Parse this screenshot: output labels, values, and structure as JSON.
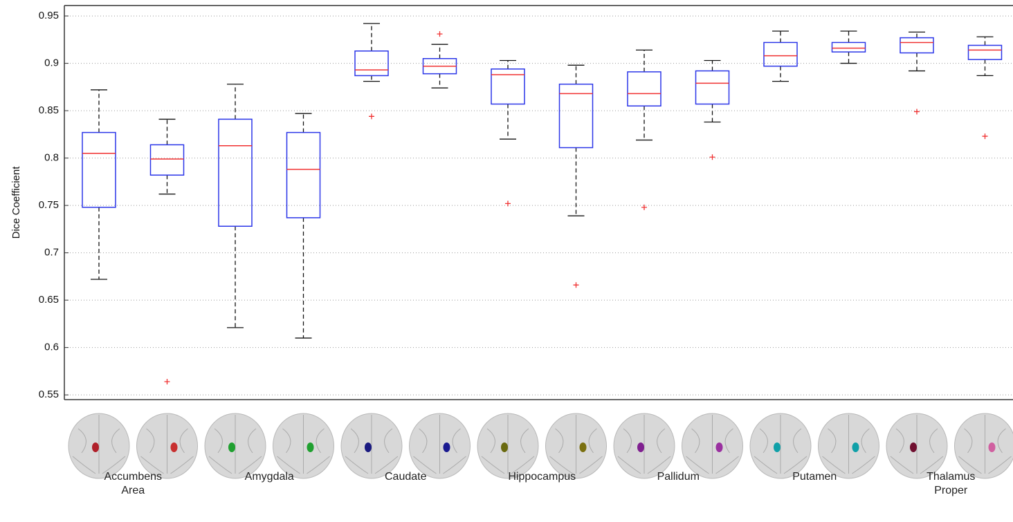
{
  "chart_data": {
    "type": "box",
    "y_label": "Dice Coefficient",
    "ylim": [
      0.545,
      0.961
    ],
    "yticks": [
      0.55,
      0.6,
      0.65,
      0.7,
      0.75,
      0.8,
      0.85,
      0.9,
      0.95
    ],
    "grid": true,
    "box_color": "#2a35e8",
    "median_color": "#f03030",
    "whisker_color": "#111111",
    "outlier_color": "#f03030",
    "groups": [
      {
        "label": "Accumbens Area",
        "boxes": [
          {
            "low": 0.672,
            "q1": 0.748,
            "median": 0.805,
            "q3": 0.827,
            "high": 0.872,
            "outliers": []
          },
          {
            "low": 0.762,
            "q1": 0.782,
            "median": 0.799,
            "q3": 0.814,
            "high": 0.841,
            "outliers": [
              0.564
            ]
          }
        ]
      },
      {
        "label": "Amygdala",
        "boxes": [
          {
            "low": 0.621,
            "q1": 0.728,
            "median": 0.813,
            "q3": 0.841,
            "high": 0.878,
            "outliers": []
          },
          {
            "low": 0.61,
            "q1": 0.737,
            "median": 0.788,
            "q3": 0.827,
            "high": 0.847,
            "outliers": []
          }
        ]
      },
      {
        "label": "Caudate",
        "boxes": [
          {
            "low": 0.881,
            "q1": 0.887,
            "median": 0.893,
            "q3": 0.913,
            "high": 0.942,
            "outliers": [
              0.844
            ]
          },
          {
            "low": 0.874,
            "q1": 0.889,
            "median": 0.897,
            "q3": 0.905,
            "high": 0.92,
            "outliers": [
              0.931
            ]
          }
        ]
      },
      {
        "label": "Hippocampus",
        "boxes": [
          {
            "low": 0.82,
            "q1": 0.857,
            "median": 0.888,
            "q3": 0.894,
            "high": 0.903,
            "outliers": [
              0.752
            ]
          },
          {
            "low": 0.739,
            "q1": 0.811,
            "median": 0.868,
            "q3": 0.878,
            "high": 0.898,
            "outliers": [
              0.666
            ]
          }
        ]
      },
      {
        "label": "Pallidum",
        "boxes": [
          {
            "low": 0.819,
            "q1": 0.855,
            "median": 0.868,
            "q3": 0.891,
            "high": 0.914,
            "outliers": [
              0.748
            ]
          },
          {
            "low": 0.838,
            "q1": 0.857,
            "median": 0.879,
            "q3": 0.892,
            "high": 0.903,
            "outliers": [
              0.801
            ]
          }
        ]
      },
      {
        "label": "Putamen",
        "boxes": [
          {
            "low": 0.881,
            "q1": 0.897,
            "median": 0.908,
            "q3": 0.922,
            "high": 0.934,
            "outliers": []
          },
          {
            "low": 0.9,
            "q1": 0.912,
            "median": 0.916,
            "q3": 0.922,
            "high": 0.934,
            "outliers": []
          }
        ]
      },
      {
        "label": "Thalamus Proper",
        "boxes": [
          {
            "low": 0.892,
            "q1": 0.911,
            "median": 0.922,
            "q3": 0.927,
            "high": 0.933,
            "outliers": [
              0.849
            ]
          },
          {
            "low": 0.887,
            "q1": 0.904,
            "median": 0.914,
            "q3": 0.919,
            "high": 0.928,
            "outliers": [
              0.823
            ]
          }
        ]
      }
    ]
  }
}
